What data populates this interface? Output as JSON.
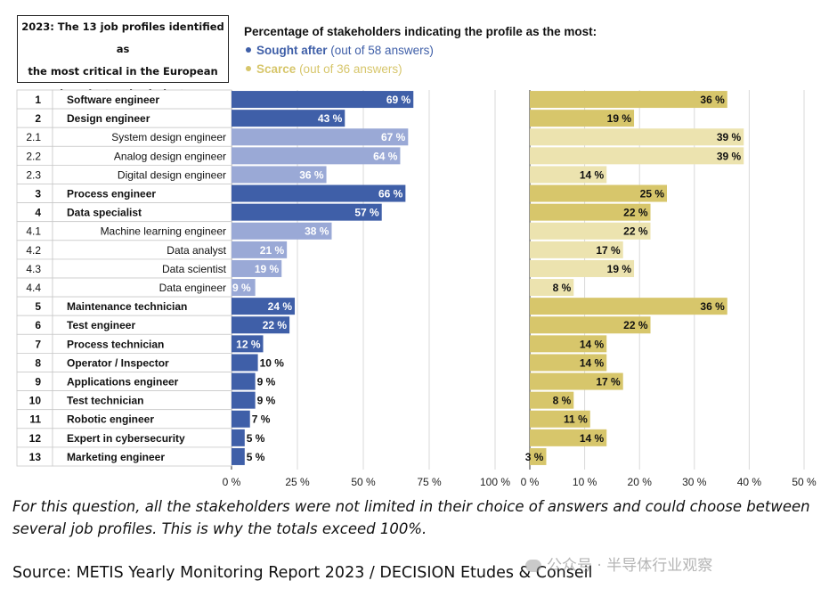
{
  "box_title": [
    "2023: The 13 job profiles identified as",
    "the most critical in the European",
    "microelectronics industry"
  ],
  "legend": {
    "heading": "Percentage of stakeholders indicating the profile as the most:",
    "sought": {
      "name": "Sought after",
      "note": "(out of 58 answers)",
      "color": "#3f5fa8"
    },
    "scarce": {
      "name": "Scarce",
      "note": "(out of 36 answers)",
      "color": "#d7c66b"
    }
  },
  "chart_data": {
    "type": "bar",
    "orientation": "horizontal",
    "categories": [
      {
        "num": "1",
        "label": "Software engineer",
        "level": 1
      },
      {
        "num": "2",
        "label": "Design engineer",
        "level": 1
      },
      {
        "num": "2.1",
        "label": "System design engineer",
        "level": 2
      },
      {
        "num": "2.2",
        "label": "Analog design engineer",
        "level": 2
      },
      {
        "num": "2.3",
        "label": "Digital design engineer",
        "level": 2
      },
      {
        "num": "3",
        "label": "Process engineer",
        "level": 1
      },
      {
        "num": "4",
        "label": "Data specialist",
        "level": 1
      },
      {
        "num": "4.1",
        "label": "Machine learning engineer",
        "level": 2
      },
      {
        "num": "4.2",
        "label": "Data analyst",
        "level": 2
      },
      {
        "num": "4.3",
        "label": "Data scientist",
        "level": 2
      },
      {
        "num": "4.4",
        "label": "Data engineer",
        "level": 2
      },
      {
        "num": "5",
        "label": "Maintenance technician",
        "level": 1
      },
      {
        "num": "6",
        "label": "Test engineer",
        "level": 1
      },
      {
        "num": "7",
        "label": "Process technician",
        "level": 1
      },
      {
        "num": "8",
        "label": "Operator / Inspector",
        "level": 1
      },
      {
        "num": "9",
        "label": "Applications engineer",
        "level": 1
      },
      {
        "num": "10",
        "label": "Test technician",
        "level": 1
      },
      {
        "num": "11",
        "label": "Robotic engineer",
        "level": 1
      },
      {
        "num": "12",
        "label": "Expert in cybersecurity",
        "level": 1
      },
      {
        "num": "13",
        "label": "Marketing engineer",
        "level": 1
      }
    ],
    "series": [
      {
        "name": "Sought after",
        "values": [
          69,
          43,
          67,
          64,
          36,
          66,
          57,
          38,
          21,
          19,
          9,
          24,
          22,
          12,
          10,
          9,
          9,
          7,
          5,
          5
        ],
        "xlim": [
          0,
          100
        ],
        "ticks": [
          "0 %",
          "25 %",
          "50 %",
          "75 %",
          "100 %"
        ],
        "tick_values": [
          0,
          25,
          50,
          75,
          100
        ]
      },
      {
        "name": "Scarce",
        "values": [
          36,
          19,
          39,
          39,
          14,
          25,
          22,
          22,
          17,
          19,
          8,
          36,
          22,
          14,
          14,
          17,
          8,
          11,
          14,
          3
        ],
        "xlim": [
          0,
          50
        ],
        "ticks": [
          "0 %",
          "10 %",
          "20 %",
          "30 %",
          "40 %",
          "50 %"
        ],
        "tick_values": [
          0,
          10,
          20,
          30,
          40,
          50
        ]
      }
    ],
    "colors": {
      "sought_main": "#3f5fa8",
      "sought_sub": "#9aa9d6",
      "scarce_main": "#d7c66b",
      "scarce_sub": "#ece3af"
    }
  },
  "note": "For this question, all the stakeholders were not limited in their choice of answers and could choose between several job profiles. This is why the totals exceed 100%.",
  "source": "Source: METIS Yearly Monitoring Report 2023 / DECISION Etudes & Conseil",
  "watermark": "公众号 · 半导体行业观察"
}
